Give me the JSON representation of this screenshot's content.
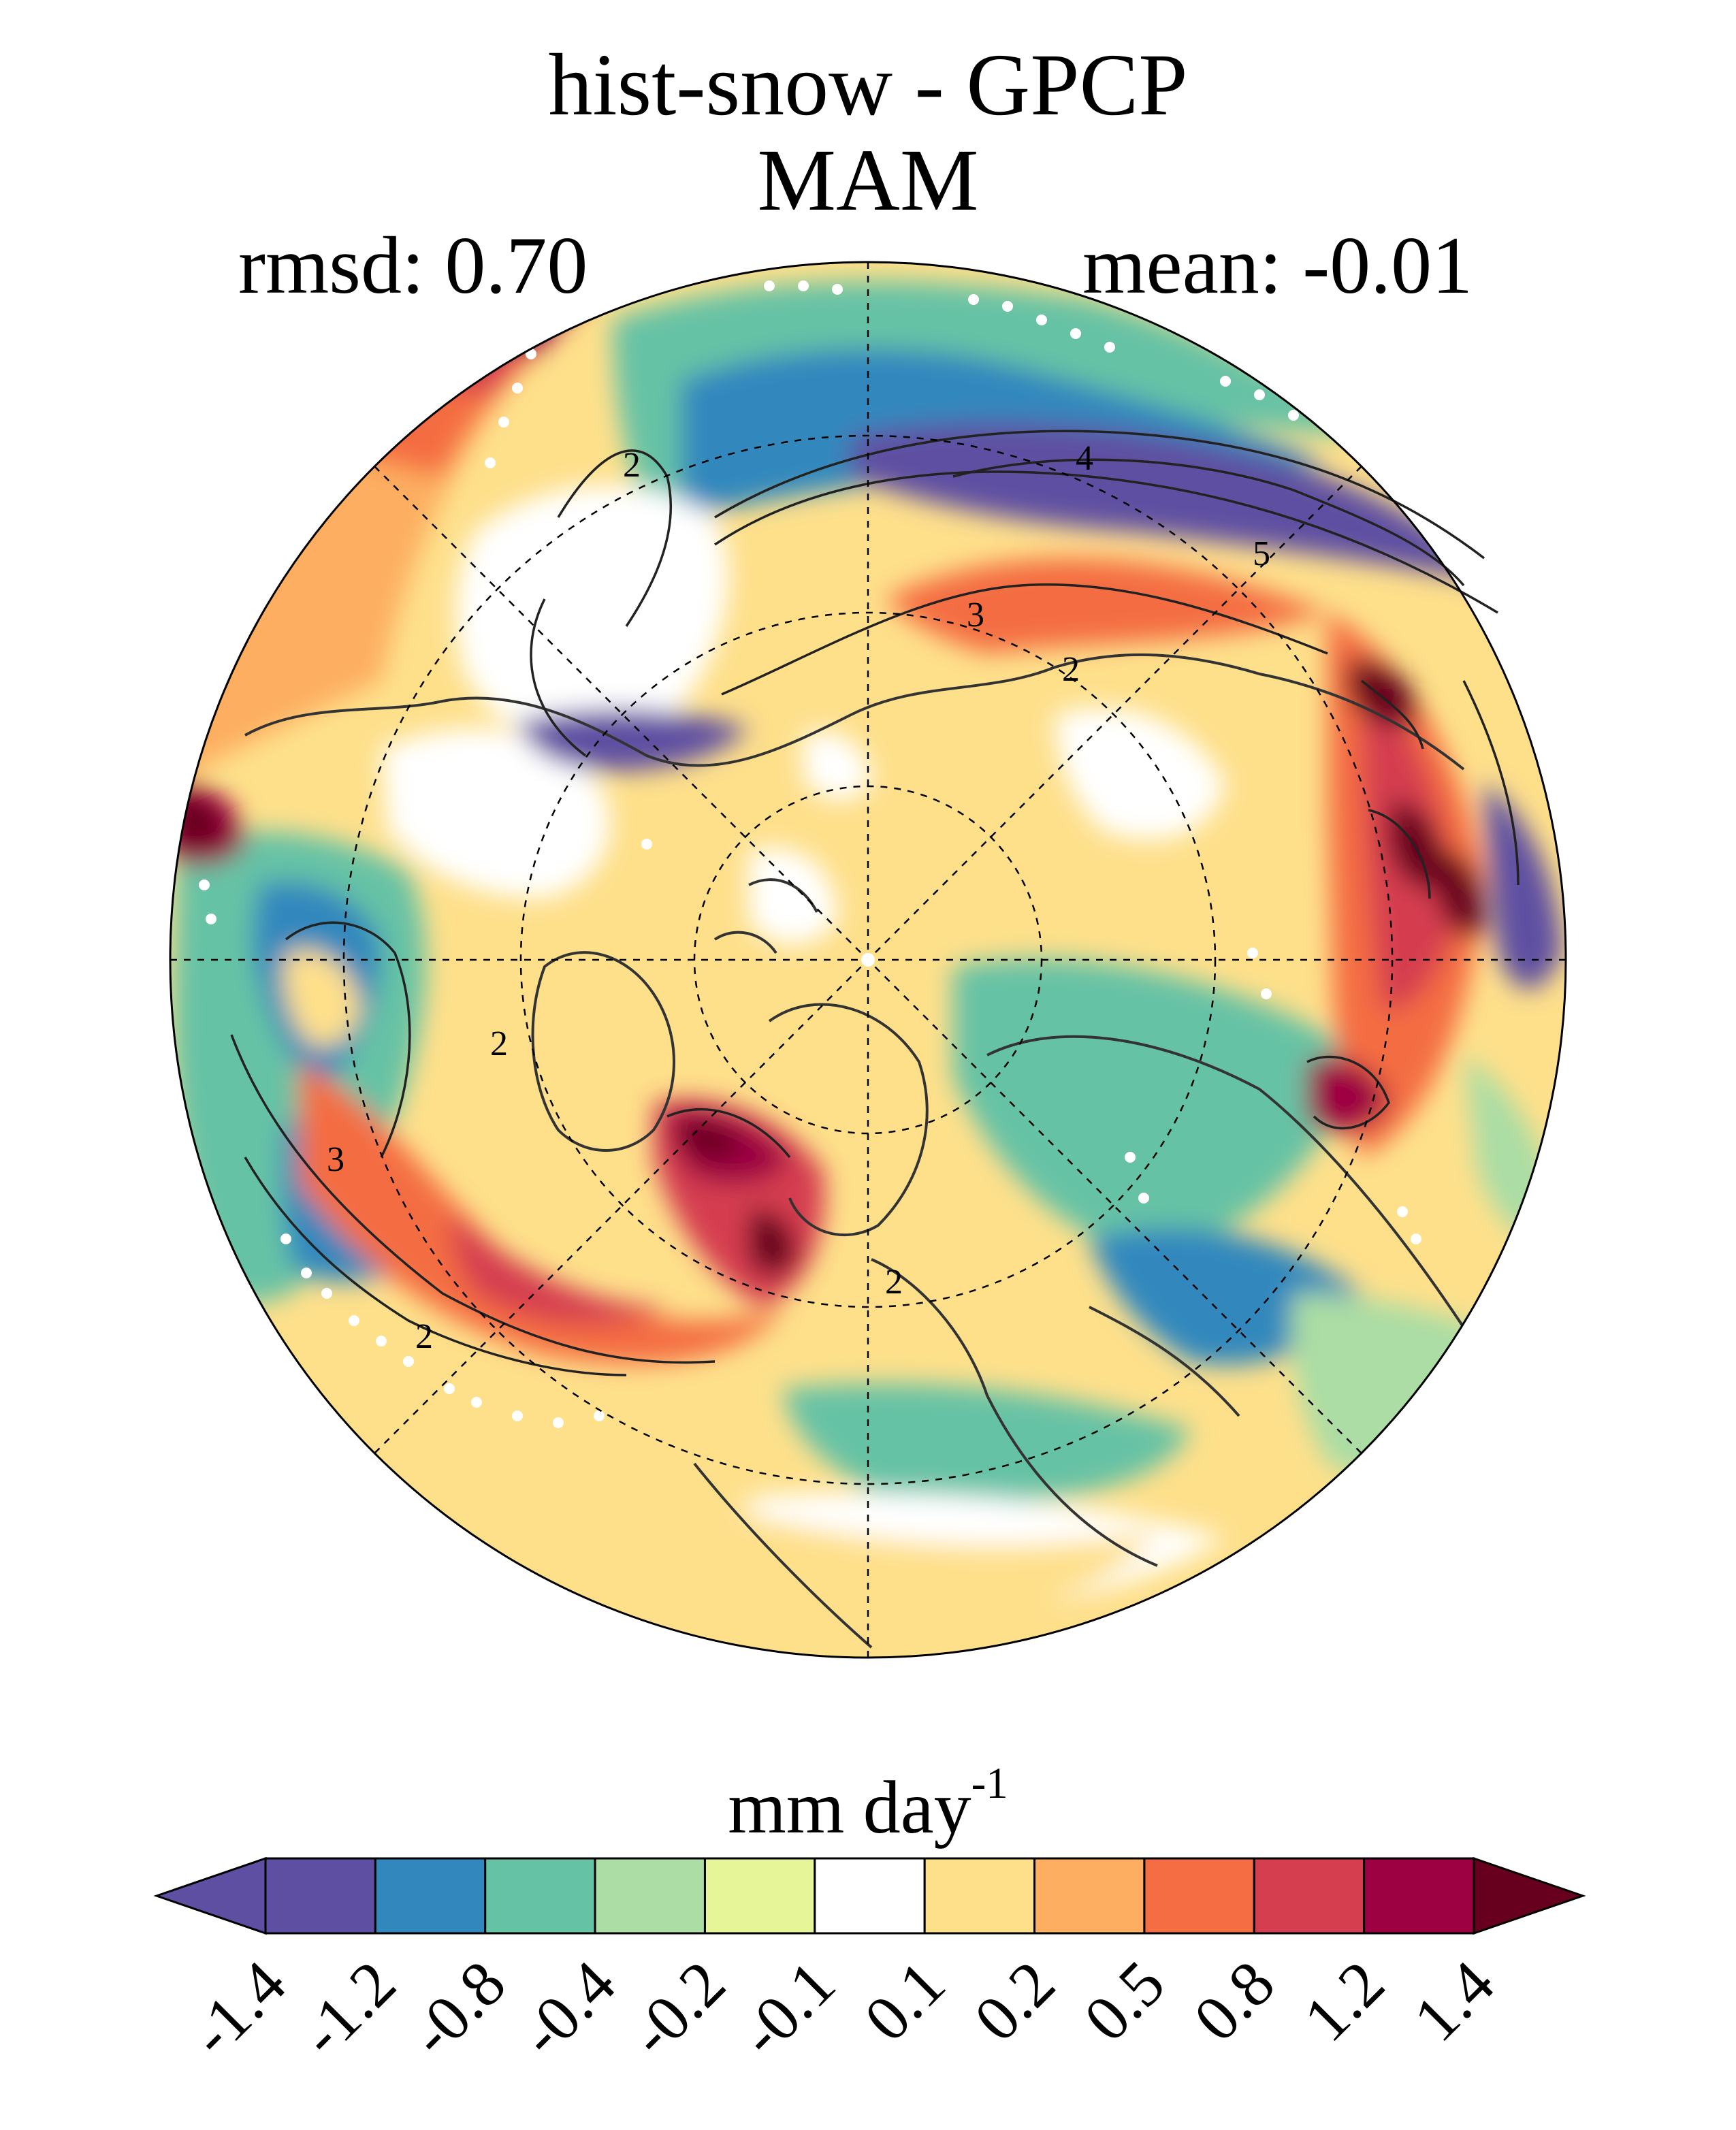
{
  "title_line1": "hist-snow - GPCP",
  "title_line2": "MAM",
  "rmsd_label": "rmsd: 0.70",
  "mean_label": "mean: -0.01",
  "colorbar": {
    "unit_main": "mm day",
    "unit_exp": "-1",
    "ticks": [
      "-1.4",
      "-1.2",
      "-0.8",
      "-0.4",
      "-0.2",
      "-0.1",
      "0.1",
      "0.2",
      "0.5",
      "0.8",
      "1.2",
      "1.4"
    ],
    "colors": [
      "#5e4fa2",
      "#5e4fa2",
      "#3288bd",
      "#66c2a5",
      "#abdda4",
      "#e6f598",
      "#ffffff",
      "#fee08b",
      "#fdae61",
      "#f46d43",
      "#d53e4f",
      "#9e0142",
      "#67001f"
    ]
  },
  "contour_labels": [
    "2",
    "3",
    "4",
    "5",
    "2",
    "3",
    "2",
    "2",
    "2"
  ]
}
